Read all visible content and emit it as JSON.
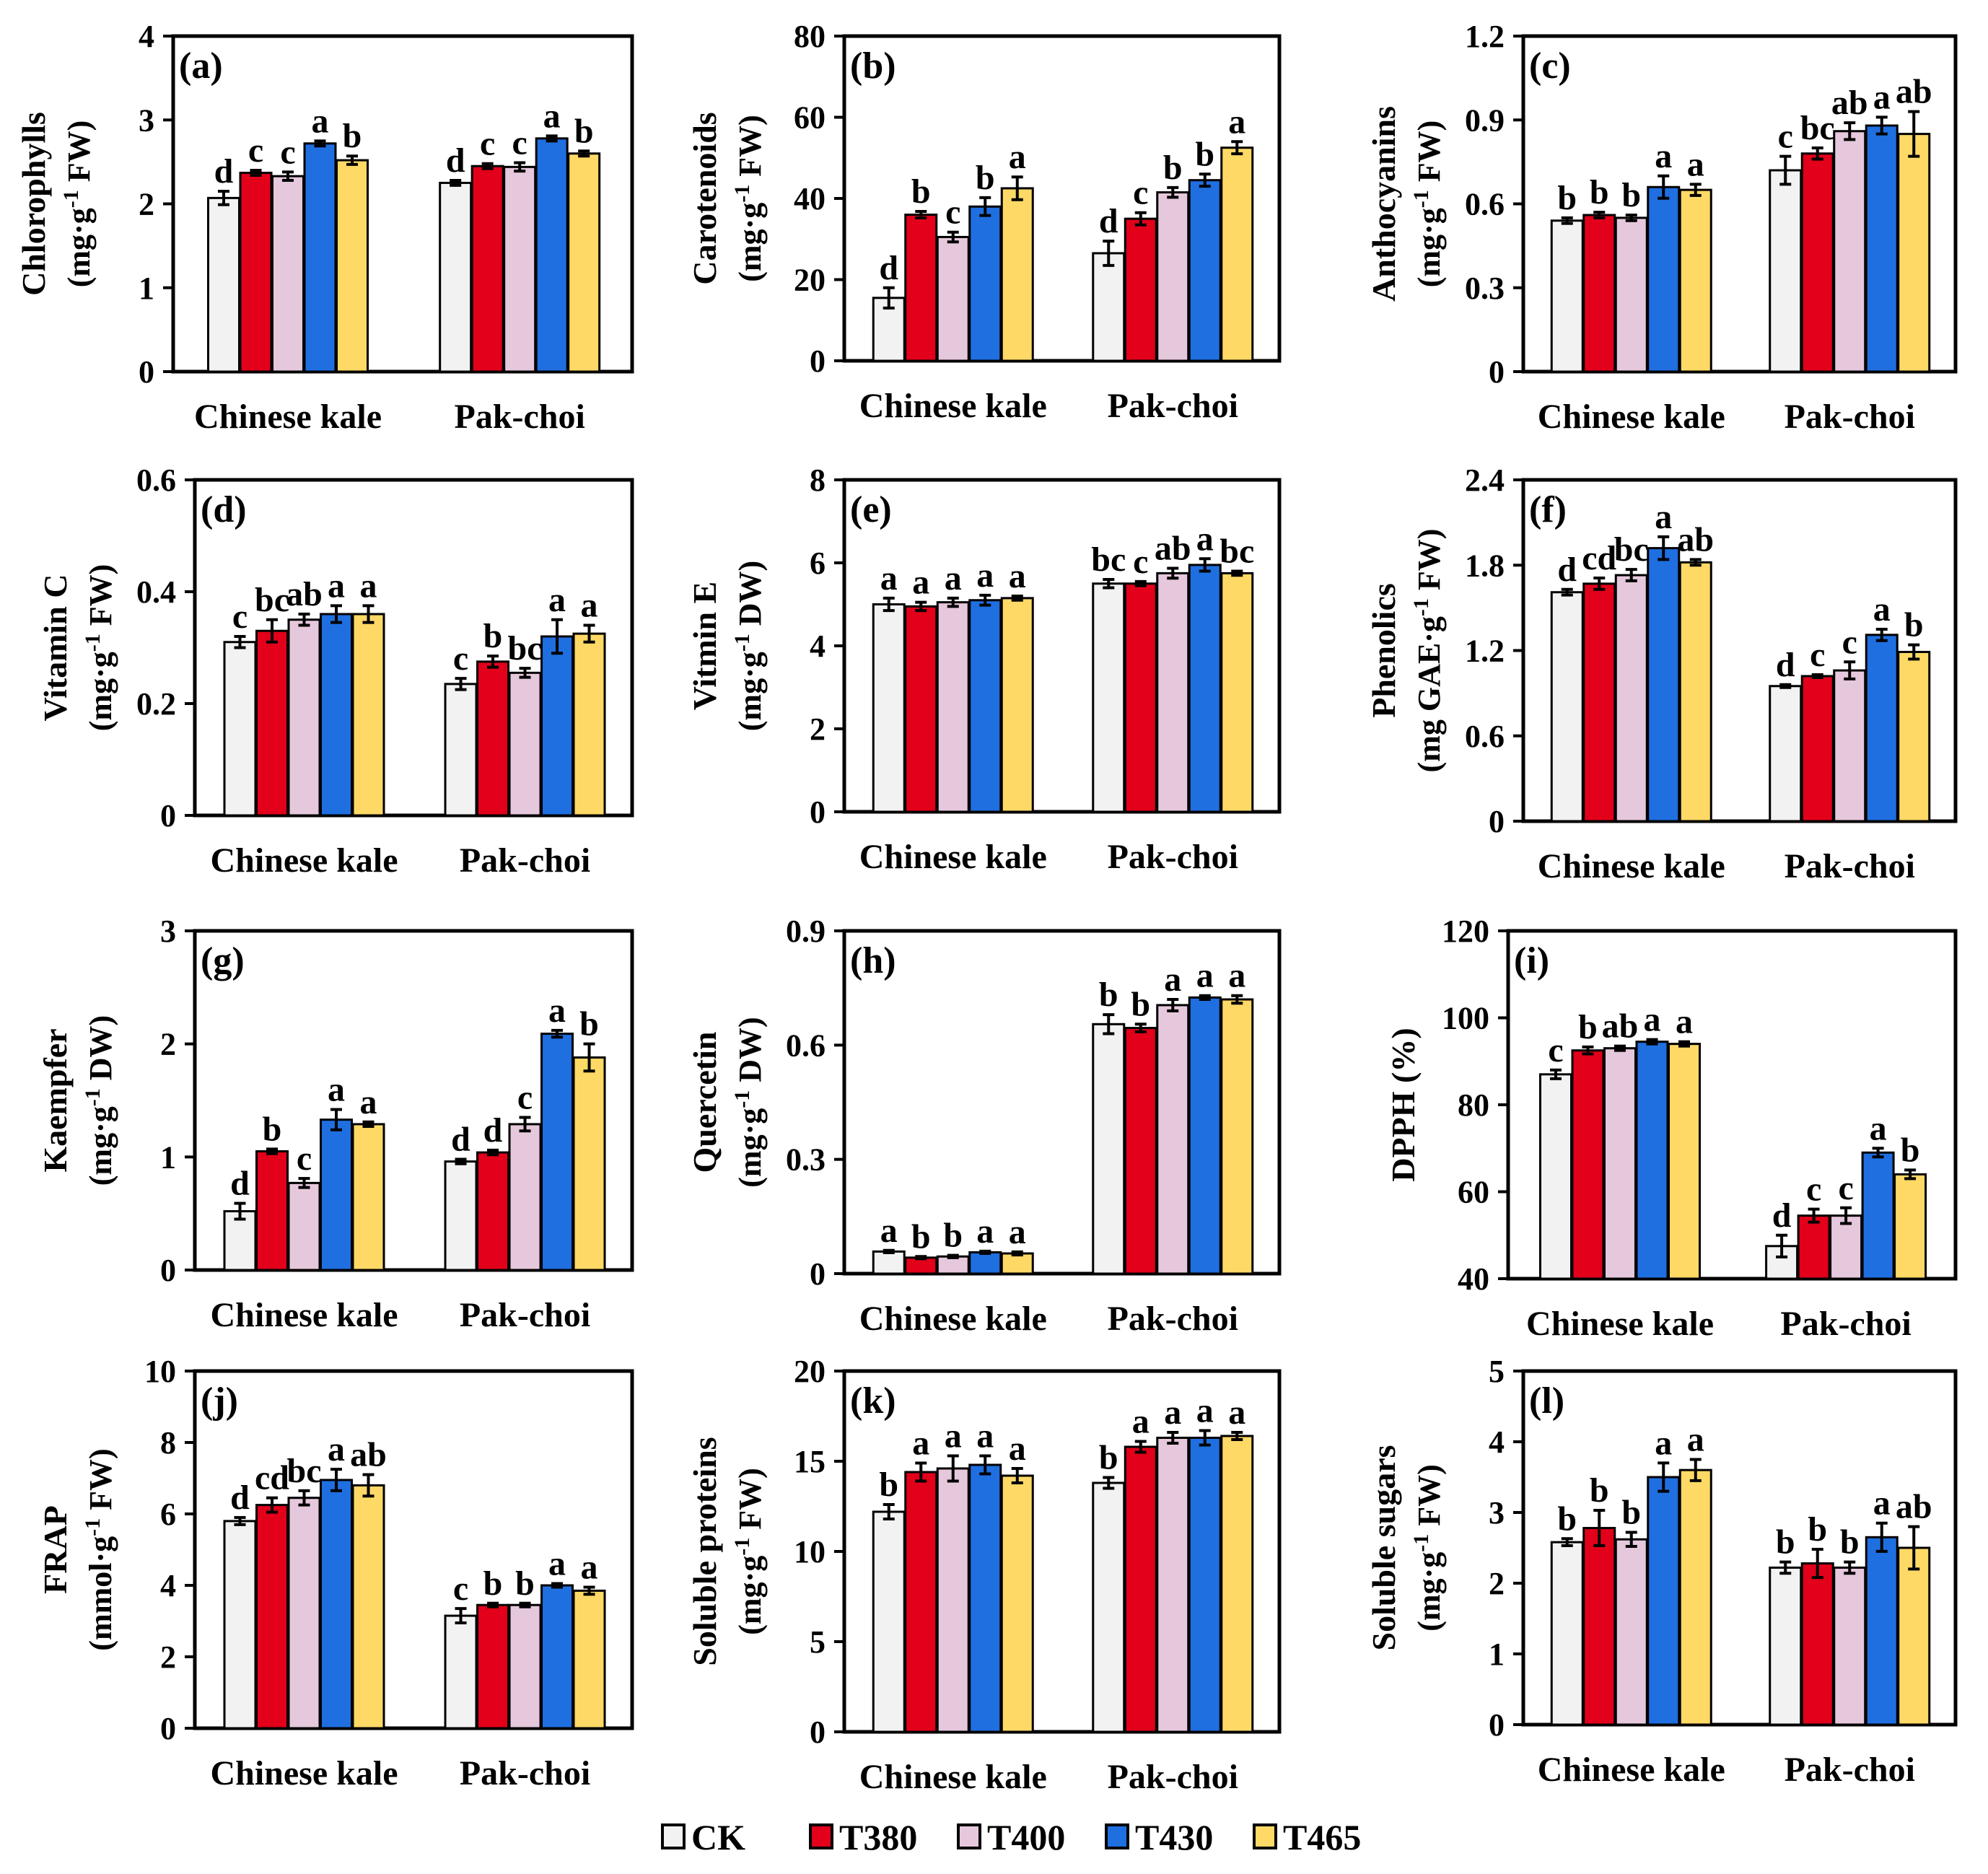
{
  "figure": {
    "groups": [
      "Chinese kale",
      "Pak-choi"
    ],
    "treatments": [
      {
        "name": "CK",
        "color": "#f2f2f2"
      },
      {
        "name": "T380",
        "color": "#e2001a"
      },
      {
        "name": "T400",
        "color": "#e6c8dc"
      },
      {
        "name": "T430",
        "color": "#1f6fe0"
      },
      {
        "name": "T465",
        "color": "#ffd966"
      }
    ]
  },
  "chart_data": [
    {
      "panel": "(a)",
      "type": "bar",
      "ylabel": "Chlorophylls",
      "yunit": "(mg·g",
      "yunit_sup": "-1",
      "yunit_tail": " FW)",
      "ylim": [
        0,
        4
      ],
      "yticks": [
        "0",
        "1",
        "2",
        "3",
        "4"
      ],
      "series": [
        {
          "name": "Chinese kale",
          "values": [
            2.07,
            2.37,
            2.33,
            2.72,
            2.52
          ],
          "errors": [
            0.08,
            0.03,
            0.05,
            0.03,
            0.05
          ],
          "letters": [
            "d",
            "c",
            "c",
            "a",
            "b"
          ]
        },
        {
          "name": "Pak-choi",
          "values": [
            2.25,
            2.45,
            2.44,
            2.78,
            2.6
          ],
          "errors": [
            0.03,
            0.03,
            0.05,
            0.03,
            0.03
          ],
          "letters": [
            "d",
            "c",
            "c",
            "a",
            "b"
          ]
        }
      ]
    },
    {
      "panel": "(b)",
      "type": "bar",
      "ylabel": "Carotenoids",
      "yunit": "(mg·g",
      "yunit_sup": "-1",
      "yunit_tail": " FW)",
      "ylim": [
        0,
        80
      ],
      "yticks": [
        "0",
        "20",
        "40",
        "60",
        "80"
      ],
      "series": [
        {
          "name": "Chinese kale",
          "values": [
            15.5,
            36,
            30.5,
            38,
            42.5
          ],
          "errors": [
            2.5,
            0.8,
            1.2,
            2.2,
            2.8
          ],
          "letters": [
            "d",
            "b",
            "c",
            "b",
            "a"
          ]
        },
        {
          "name": "Pak-choi",
          "values": [
            26.5,
            35,
            41.5,
            44.5,
            52.5
          ],
          "errors": [
            3,
            1.5,
            1.2,
            1.5,
            1.5
          ],
          "letters": [
            "d",
            "c",
            "b",
            "b",
            "a"
          ]
        }
      ]
    },
    {
      "panel": "(c)",
      "type": "bar",
      "ylabel": "Anthocyanins",
      "yunit": "(mg·g",
      "yunit_sup": "-1",
      "yunit_tail": " FW)",
      "ylim": [
        0,
        1.2
      ],
      "yticks": [
        "0",
        "0.3",
        "0.6",
        "0.9",
        "1.2"
      ],
      "series": [
        {
          "name": "Chinese kale",
          "values": [
            0.54,
            0.56,
            0.55,
            0.66,
            0.65
          ],
          "errors": [
            0.01,
            0.01,
            0.01,
            0.04,
            0.02
          ],
          "letters": [
            "b",
            "b",
            "b",
            "a",
            "a"
          ]
        },
        {
          "name": "Pak-choi",
          "values": [
            0.72,
            0.78,
            0.86,
            0.88,
            0.85
          ],
          "errors": [
            0.05,
            0.02,
            0.03,
            0.03,
            0.08
          ],
          "letters": [
            "c",
            "bc",
            "ab",
            "a",
            "ab"
          ]
        }
      ]
    },
    {
      "panel": "(d)",
      "type": "bar",
      "ylabel": "Vitamin C",
      "yunit": "(mg·g",
      "yunit_sup": "-1",
      "yunit_tail": " FW)",
      "ylim": [
        0,
        0.6
      ],
      "yticks": [
        "0",
        "0.2",
        "0.4",
        "0.6"
      ],
      "series": [
        {
          "name": "Chinese kale",
          "values": [
            0.31,
            0.33,
            0.35,
            0.36,
            0.36
          ],
          "errors": [
            0.01,
            0.02,
            0.01,
            0.015,
            0.015
          ],
          "letters": [
            "c",
            "bc",
            "ab",
            "a",
            "a"
          ]
        },
        {
          "name": "Pak-choi",
          "values": [
            0.235,
            0.275,
            0.255,
            0.32,
            0.325
          ],
          "errors": [
            0.01,
            0.01,
            0.008,
            0.03,
            0.015
          ],
          "letters": [
            "c",
            "b",
            "bc",
            "a",
            "a"
          ]
        }
      ]
    },
    {
      "panel": "(e)",
      "type": "bar",
      "ylabel": "Vitmin E",
      "yunit": "(mg·g",
      "yunit_sup": "-1",
      "yunit_tail": " DW)",
      "ylim": [
        0,
        8
      ],
      "yticks": [
        "0",
        "2",
        "4",
        "6",
        "8"
      ],
      "series": [
        {
          "name": "Chinese kale",
          "values": [
            5.0,
            4.95,
            5.05,
            5.1,
            5.15
          ],
          "errors": [
            0.15,
            0.1,
            0.1,
            0.12,
            0.05
          ],
          "letters": [
            "a",
            "a",
            "a",
            "a",
            "a"
          ]
        },
        {
          "name": "Pak-choi",
          "values": [
            5.5,
            5.5,
            5.75,
            5.95,
            5.75
          ],
          "errors": [
            0.1,
            0.05,
            0.12,
            0.15,
            0.05
          ],
          "letters": [
            "bc",
            "c",
            "ab",
            "a",
            "bc"
          ]
        }
      ]
    },
    {
      "panel": "(f)",
      "type": "bar",
      "ylabel": "Phenolics",
      "yunit": "(mg GAE·g",
      "yunit_sup": "-1",
      "yunit_tail": " FW)",
      "ylim": [
        0,
        2.4
      ],
      "yticks": [
        "0",
        "0.6",
        "1.2",
        "1.8",
        "2.4"
      ],
      "series": [
        {
          "name": "Chinese kale",
          "values": [
            1.61,
            1.67,
            1.73,
            1.92,
            1.82
          ],
          "errors": [
            0.02,
            0.04,
            0.04,
            0.08,
            0.02
          ],
          "letters": [
            "d",
            "cd",
            "bc",
            "a",
            "ab"
          ]
        },
        {
          "name": "Pak-choi",
          "values": [
            0.95,
            1.02,
            1.06,
            1.31,
            1.19
          ],
          "errors": [
            0.01,
            0.01,
            0.06,
            0.04,
            0.05
          ],
          "letters": [
            "d",
            "c",
            "c",
            "a",
            "b"
          ]
        }
      ]
    },
    {
      "panel": "(g)",
      "type": "bar",
      "ylabel": "Kaempfer",
      "yunit": "(mg·g",
      "yunit_sup": "-1",
      "yunit_tail": " DW)",
      "ylim": [
        0,
        3
      ],
      "yticks": [
        "0",
        "1",
        "2",
        "3"
      ],
      "series": [
        {
          "name": "Chinese kale",
          "values": [
            0.52,
            1.05,
            0.77,
            1.33,
            1.29
          ],
          "errors": [
            0.07,
            0.02,
            0.04,
            0.09,
            0.02
          ],
          "letters": [
            "d",
            "b",
            "c",
            "a",
            "a"
          ]
        },
        {
          "name": "Pak-choi",
          "values": [
            0.96,
            1.04,
            1.29,
            2.09,
            1.88
          ],
          "errors": [
            0.02,
            0.02,
            0.06,
            0.03,
            0.12
          ],
          "letters": [
            "d",
            "d",
            "c",
            "a",
            "b"
          ]
        }
      ]
    },
    {
      "panel": "(h)",
      "type": "bar",
      "ylabel": "Quercetin",
      "yunit": "(mg·g",
      "yunit_sup": "-1",
      "yunit_tail": " DW)",
      "ylim": [
        0,
        0.9
      ],
      "yticks": [
        "0",
        "0.3",
        "0.6",
        "0.9"
      ],
      "series": [
        {
          "name": "Chinese kale",
          "values": [
            0.058,
            0.042,
            0.045,
            0.056,
            0.053
          ],
          "errors": [
            0.003,
            0.003,
            0.003,
            0.003,
            0.004
          ],
          "letters": [
            "a",
            "b",
            "b",
            "a",
            "a"
          ]
        },
        {
          "name": "Pak-choi",
          "values": [
            0.655,
            0.645,
            0.705,
            0.725,
            0.72
          ],
          "errors": [
            0.025,
            0.01,
            0.015,
            0.005,
            0.01
          ],
          "letters": [
            "b",
            "b",
            "a",
            "a",
            "a"
          ]
        }
      ]
    },
    {
      "panel": "(i)",
      "type": "bar",
      "ylabel": "DPPH (%)",
      "yunit": "",
      "yunit_sup": "",
      "yunit_tail": "",
      "ylim": [
        40,
        120
      ],
      "yticks": [
        "40",
        "60",
        "80",
        "100",
        "120"
      ],
      "series": [
        {
          "name": "Chinese kale",
          "values": [
            87,
            92.5,
            93,
            94.5,
            94
          ],
          "errors": [
            1,
            0.8,
            0.5,
            0.5,
            0.5
          ],
          "letters": [
            "c",
            "b",
            "ab",
            "a",
            "a"
          ]
        },
        {
          "name": "Pak-choi",
          "values": [
            47.5,
            54.5,
            54.5,
            69,
            64
          ],
          "errors": [
            2.5,
            1.5,
            1.8,
            1,
            1
          ],
          " letters_note": "",
          "letters": [
            "d",
            "c",
            "c",
            "a",
            "b"
          ]
        }
      ]
    },
    {
      "panel": "(j)",
      "type": "bar",
      "ylabel": "FRAP",
      "yunit": "(mmol·g",
      "yunit_sup": "-1",
      "yunit_tail": " FW)",
      "ylim": [
        0,
        10
      ],
      "yticks": [
        "0",
        "2",
        "4",
        "6",
        "8",
        "10"
      ],
      "series": [
        {
          "name": "Chinese kale",
          "values": [
            5.8,
            6.25,
            6.45,
            6.95,
            6.8
          ],
          "errors": [
            0.1,
            0.2,
            0.2,
            0.3,
            0.3
          ],
          "letters": [
            "d",
            "cd",
            "bc",
            "a",
            "ab"
          ]
        },
        {
          "name": "Pak-choi",
          "values": [
            3.15,
            3.45,
            3.45,
            4.0,
            3.85
          ],
          "errors": [
            0.2,
            0.05,
            0.05,
            0.05,
            0.1
          ],
          "letters": [
            "c",
            "b",
            "b",
            "a",
            "a"
          ]
        }
      ]
    },
    {
      "panel": "(k)",
      "type": "bar",
      "ylabel": "Soluble proteins",
      "yunit": "(mg·g",
      "yunit_sup": "-1",
      "yunit_tail": " FW)",
      "ylim": [
        0,
        20
      ],
      "yticks": [
        "0",
        "5",
        "10",
        "15",
        "20"
      ],
      "series": [
        {
          "name": "Chinese kale",
          "values": [
            12.2,
            14.4,
            14.6,
            14.8,
            14.2
          ],
          "errors": [
            0.4,
            0.5,
            0.7,
            0.5,
            0.4
          ],
          "letters": [
            "b",
            "a",
            "a",
            "a",
            "a"
          ]
        },
        {
          "name": "Pak-choi",
          "values": [
            13.8,
            15.8,
            16.3,
            16.3,
            16.4
          ],
          "errors": [
            0.3,
            0.3,
            0.3,
            0.4,
            0.2
          ],
          "letters": [
            "b",
            "a",
            "a",
            "a",
            "a"
          ]
        }
      ]
    },
    {
      "panel": "(l)",
      "type": "bar",
      "ylabel": "Soluble sugars",
      "yunit": "(mg·g",
      "yunit_sup": "-1",
      "yunit_tail": " FW)",
      "ylim": [
        0,
        5
      ],
      "yticks": [
        "0",
        "1",
        "2",
        "3",
        "4",
        "5"
      ],
      "series": [
        {
          "name": "Chinese kale",
          "values": [
            2.58,
            2.78,
            2.62,
            3.5,
            3.6
          ],
          "errors": [
            0.05,
            0.25,
            0.1,
            0.2,
            0.15
          ],
          "letters": [
            "b",
            "b",
            "b",
            "a",
            "a"
          ]
        },
        {
          "name": "Pak-choi",
          "values": [
            2.22,
            2.28,
            2.22,
            2.65,
            2.5
          ],
          "errors": [
            0.08,
            0.2,
            0.08,
            0.2,
            0.3
          ],
          "letters": [
            "b",
            "b",
            "b",
            "a",
            "ab"
          ]
        }
      ]
    }
  ]
}
